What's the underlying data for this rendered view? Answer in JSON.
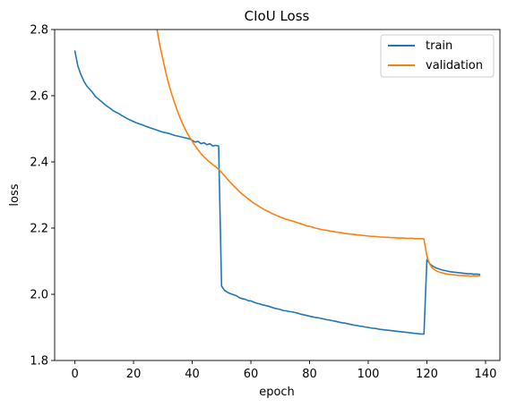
{
  "chart_data": {
    "type": "line",
    "title": "CIoU Loss",
    "xlabel": "epoch",
    "ylabel": "loss",
    "xlim": [
      -6.9,
      144.9
    ],
    "ylim": [
      1.8,
      2.8
    ],
    "xticks": [
      0,
      20,
      40,
      60,
      80,
      100,
      120,
      140
    ],
    "yticks": [
      1.8,
      2.0,
      2.2,
      2.4,
      2.6,
      2.8
    ],
    "ytick_labels": [
      "1.8",
      "2.0",
      "2.2",
      "2.4",
      "2.6",
      "2.8"
    ],
    "grid": false,
    "legend_position": "top-right",
    "series": [
      {
        "name": "train",
        "color": "#1f77b4",
        "points": [
          [
            0,
            2.735
          ],
          [
            1,
            2.69
          ],
          [
            2,
            2.665
          ],
          [
            3,
            2.645
          ],
          [
            4,
            2.63
          ],
          [
            5,
            2.62
          ],
          [
            6,
            2.61
          ],
          [
            7,
            2.598
          ],
          [
            8,
            2.59
          ],
          [
            9,
            2.583
          ],
          [
            10,
            2.575
          ],
          [
            11,
            2.568
          ],
          [
            12,
            2.562
          ],
          [
            13,
            2.555
          ],
          [
            14,
            2.55
          ],
          [
            15,
            2.546
          ],
          [
            16,
            2.54
          ],
          [
            17,
            2.535
          ],
          [
            18,
            2.53
          ],
          [
            19,
            2.526
          ],
          [
            20,
            2.522
          ],
          [
            21,
            2.518
          ],
          [
            22,
            2.515
          ],
          [
            23,
            2.512
          ],
          [
            24,
            2.508
          ],
          [
            25,
            2.505
          ],
          [
            26,
            2.502
          ],
          [
            27,
            2.499
          ],
          [
            28,
            2.496
          ],
          [
            29,
            2.493
          ],
          [
            30,
            2.49
          ],
          [
            31,
            2.488
          ],
          [
            32,
            2.486
          ],
          [
            33,
            2.483
          ],
          [
            34,
            2.48
          ],
          [
            35,
            2.478
          ],
          [
            36,
            2.476
          ],
          [
            37,
            2.474
          ],
          [
            38,
            2.472
          ],
          [
            39,
            2.47
          ],
          [
            40,
            2.465
          ],
          [
            41,
            2.46
          ],
          [
            42,
            2.462
          ],
          [
            43,
            2.455
          ],
          [
            44,
            2.458
          ],
          [
            45,
            2.452
          ],
          [
            46,
            2.455
          ],
          [
            47,
            2.448
          ],
          [
            48,
            2.45
          ],
          [
            49,
            2.448
          ],
          [
            50,
            2.025
          ],
          [
            51,
            2.012
          ],
          [
            52,
            2.006
          ],
          [
            53,
            2.002
          ],
          [
            54,
            1.999
          ],
          [
            55,
            1.996
          ],
          [
            56,
            1.99
          ],
          [
            57,
            1.987
          ],
          [
            58,
            1.985
          ],
          [
            59,
            1.981
          ],
          [
            60,
            1.98
          ],
          [
            61,
            1.976
          ],
          [
            62,
            1.973
          ],
          [
            63,
            1.971
          ],
          [
            64,
            1.968
          ],
          [
            65,
            1.966
          ],
          [
            66,
            1.964
          ],
          [
            67,
            1.961
          ],
          [
            68,
            1.958
          ],
          [
            69,
            1.956
          ],
          [
            70,
            1.954
          ],
          [
            71,
            1.951
          ],
          [
            72,
            1.95
          ],
          [
            73,
            1.948
          ],
          [
            74,
            1.947
          ],
          [
            75,
            1.945
          ],
          [
            76,
            1.943
          ],
          [
            77,
            1.94
          ],
          [
            78,
            1.938
          ],
          [
            79,
            1.936
          ],
          [
            80,
            1.934
          ],
          [
            81,
            1.932
          ],
          [
            82,
            1.93
          ],
          [
            83,
            1.929
          ],
          [
            84,
            1.927
          ],
          [
            85,
            1.925
          ],
          [
            86,
            1.923
          ],
          [
            87,
            1.922
          ],
          [
            88,
            1.92
          ],
          [
            89,
            1.918
          ],
          [
            90,
            1.916
          ],
          [
            91,
            1.914
          ],
          [
            92,
            1.913
          ],
          [
            93,
            1.911
          ],
          [
            94,
            1.909
          ],
          [
            95,
            1.907
          ],
          [
            96,
            1.906
          ],
          [
            97,
            1.904
          ],
          [
            98,
            1.903
          ],
          [
            99,
            1.901
          ],
          [
            100,
            1.9
          ],
          [
            101,
            1.898
          ],
          [
            102,
            1.897
          ],
          [
            103,
            1.896
          ],
          [
            104,
            1.894
          ],
          [
            105,
            1.893
          ],
          [
            106,
            1.892
          ],
          [
            107,
            1.891
          ],
          [
            108,
            1.89
          ],
          [
            109,
            1.889
          ],
          [
            110,
            1.888
          ],
          [
            111,
            1.887
          ],
          [
            112,
            1.886
          ],
          [
            113,
            1.885
          ],
          [
            114,
            1.884
          ],
          [
            115,
            1.883
          ],
          [
            116,
            1.882
          ],
          [
            117,
            1.881
          ],
          [
            118,
            1.88
          ],
          [
            119,
            1.88
          ],
          [
            120,
            2.105
          ],
          [
            121,
            2.092
          ],
          [
            122,
            2.085
          ],
          [
            123,
            2.08
          ],
          [
            124,
            2.077
          ],
          [
            125,
            2.074
          ],
          [
            126,
            2.072
          ],
          [
            127,
            2.07
          ],
          [
            128,
            2.068
          ],
          [
            129,
            2.067
          ],
          [
            130,
            2.066
          ],
          [
            131,
            2.065
          ],
          [
            132,
            2.064
          ],
          [
            133,
            2.063
          ],
          [
            134,
            2.062
          ],
          [
            135,
            2.062
          ],
          [
            136,
            2.061
          ],
          [
            137,
            2.061
          ],
          [
            138,
            2.06
          ]
        ]
      },
      {
        "name": "validation",
        "color": "#ff7f0e",
        "points": [
          [
            28,
            2.8
          ],
          [
            29,
            2.75
          ],
          [
            30,
            2.71
          ],
          [
            31,
            2.67
          ],
          [
            32,
            2.635
          ],
          [
            33,
            2.605
          ],
          [
            34,
            2.578
          ],
          [
            35,
            2.553
          ],
          [
            36,
            2.53
          ],
          [
            37,
            2.51
          ],
          [
            38,
            2.492
          ],
          [
            39,
            2.476
          ],
          [
            40,
            2.462
          ],
          [
            41,
            2.448
          ],
          [
            42,
            2.436
          ],
          [
            43,
            2.425
          ],
          [
            44,
            2.415
          ],
          [
            45,
            2.407
          ],
          [
            46,
            2.399
          ],
          [
            47,
            2.392
          ],
          [
            48,
            2.385
          ],
          [
            49,
            2.378
          ],
          [
            50,
            2.368
          ],
          [
            51,
            2.358
          ],
          [
            52,
            2.348
          ],
          [
            53,
            2.338
          ],
          [
            54,
            2.329
          ],
          [
            55,
            2.32
          ],
          [
            56,
            2.311
          ],
          [
            57,
            2.303
          ],
          [
            58,
            2.296
          ],
          [
            59,
            2.289
          ],
          [
            60,
            2.282
          ],
          [
            61,
            2.275
          ],
          [
            62,
            2.27
          ],
          [
            63,
            2.264
          ],
          [
            64,
            2.259
          ],
          [
            65,
            2.254
          ],
          [
            66,
            2.25
          ],
          [
            67,
            2.245
          ],
          [
            68,
            2.241
          ],
          [
            69,
            2.237
          ],
          [
            70,
            2.233
          ],
          [
            71,
            2.23
          ],
          [
            72,
            2.227
          ],
          [
            73,
            2.224
          ],
          [
            74,
            2.222
          ],
          [
            75,
            2.219
          ],
          [
            76,
            2.216
          ],
          [
            77,
            2.213
          ],
          [
            78,
            2.21
          ],
          [
            79,
            2.207
          ],
          [
            80,
            2.205
          ],
          [
            81,
            2.203
          ],
          [
            82,
            2.2
          ],
          [
            83,
            2.198
          ],
          [
            84,
            2.196
          ],
          [
            85,
            2.194
          ],
          [
            86,
            2.193
          ],
          [
            87,
            2.191
          ],
          [
            88,
            2.19
          ],
          [
            89,
            2.188
          ],
          [
            90,
            2.187
          ],
          [
            91,
            2.186
          ],
          [
            92,
            2.184
          ],
          [
            93,
            2.183
          ],
          [
            94,
            2.182
          ],
          [
            95,
            2.181
          ],
          [
            96,
            2.18
          ],
          [
            97,
            2.179
          ],
          [
            98,
            2.178
          ],
          [
            99,
            2.177
          ],
          [
            100,
            2.176
          ],
          [
            101,
            2.175
          ],
          [
            102,
            2.175
          ],
          [
            103,
            2.174
          ],
          [
            104,
            2.173
          ],
          [
            105,
            2.173
          ],
          [
            106,
            2.172
          ],
          [
            107,
            2.172
          ],
          [
            108,
            2.171
          ],
          [
            109,
            2.171
          ],
          [
            110,
            2.17
          ],
          [
            111,
            2.17
          ],
          [
            112,
            2.17
          ],
          [
            113,
            2.169
          ],
          [
            114,
            2.169
          ],
          [
            115,
            2.169
          ],
          [
            116,
            2.168
          ],
          [
            117,
            2.168
          ],
          [
            118,
            2.168
          ],
          [
            119,
            2.167
          ],
          [
            120,
            2.115
          ],
          [
            121,
            2.09
          ],
          [
            122,
            2.078
          ],
          [
            123,
            2.072
          ],
          [
            124,
            2.068
          ],
          [
            125,
            2.065
          ],
          [
            126,
            2.063
          ],
          [
            127,
            2.061
          ],
          [
            128,
            2.06
          ],
          [
            129,
            2.059
          ],
          [
            130,
            2.058
          ],
          [
            131,
            2.057
          ],
          [
            132,
            2.057
          ],
          [
            133,
            2.056
          ],
          [
            134,
            2.056
          ],
          [
            135,
            2.055
          ],
          [
            136,
            2.056
          ],
          [
            137,
            2.055
          ],
          [
            138,
            2.056
          ]
        ]
      }
    ]
  }
}
